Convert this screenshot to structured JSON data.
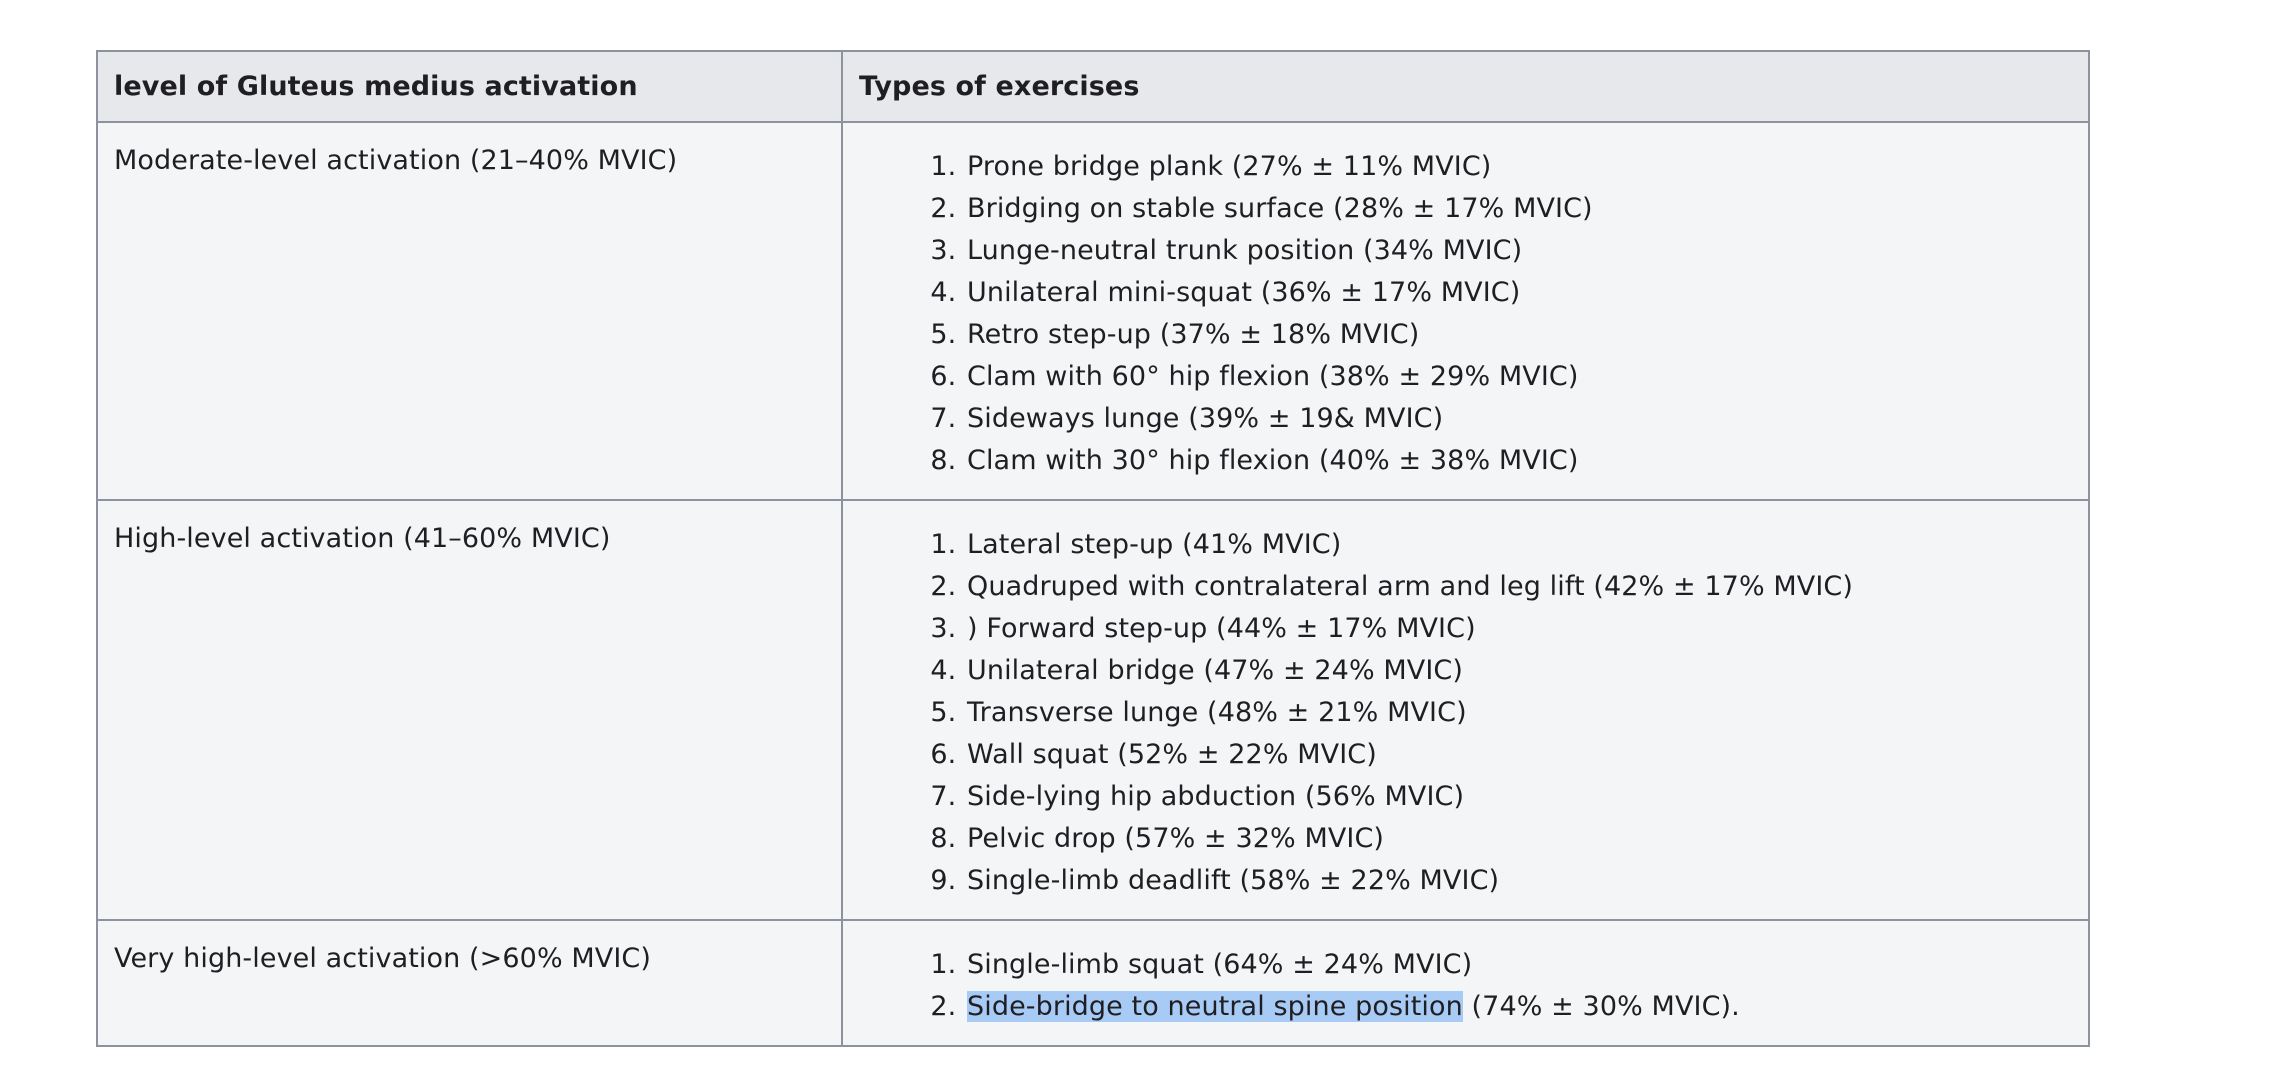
{
  "table": {
    "headers": [
      "level of Gluteus medius activation",
      "Types of exercises"
    ],
    "rows": [
      {
        "level": "Moderate-level activation (21–40% MVIC)",
        "exercises": [
          "Prone bridge plank (27% ± 11% MVIC)",
          "Bridging on stable surface (28% ± 17% MVIC)",
          "Lunge-neutral trunk position (34% MVIC)",
          "Unilateral mini-squat (36% ± 17% MVIC)",
          "Retro step-up (37% ± 18% MVIC)",
          "Clam with 60° hip flexion (38% ± 29% MVIC)",
          "Sideways lunge (39% ± 19& MVIC)",
          "Clam with 30° hip flexion (40% ± 38% MVIC)"
        ]
      },
      {
        "level": "High-level activation (41–60% MVIC)",
        "exercises": [
          "Lateral step-up (41% MVIC)",
          "Quadruped with contralateral arm and leg lift (42% ± 17% MVIC)",
          ") Forward step-up (44% ± 17% MVIC)",
          "Unilateral bridge (47% ± 24% MVIC)",
          "Transverse lunge (48% ± 21% MVIC)",
          "Wall squat (52% ± 22% MVIC)",
          "Side-lying hip abduction (56% MVIC)",
          "Pelvic drop (57% ± 32% MVIC)",
          "Single-limb deadlift (58% ± 22% MVIC)"
        ]
      },
      {
        "level": "Very high-level activation (>60% MVIC)",
        "exercises": [
          "Single-limb squat (64% ± 24% MVIC)",
          {
            "highlighted": "Side-bridge to neutral spine position",
            "rest": " (74% ± 30% MVIC)."
          }
        ]
      }
    ]
  },
  "colors": {
    "header_bg": "#e7e8ec",
    "cell_bg": "#f4f5f7",
    "border": "#8e929e",
    "selection_highlight": "#a8cbf5"
  }
}
